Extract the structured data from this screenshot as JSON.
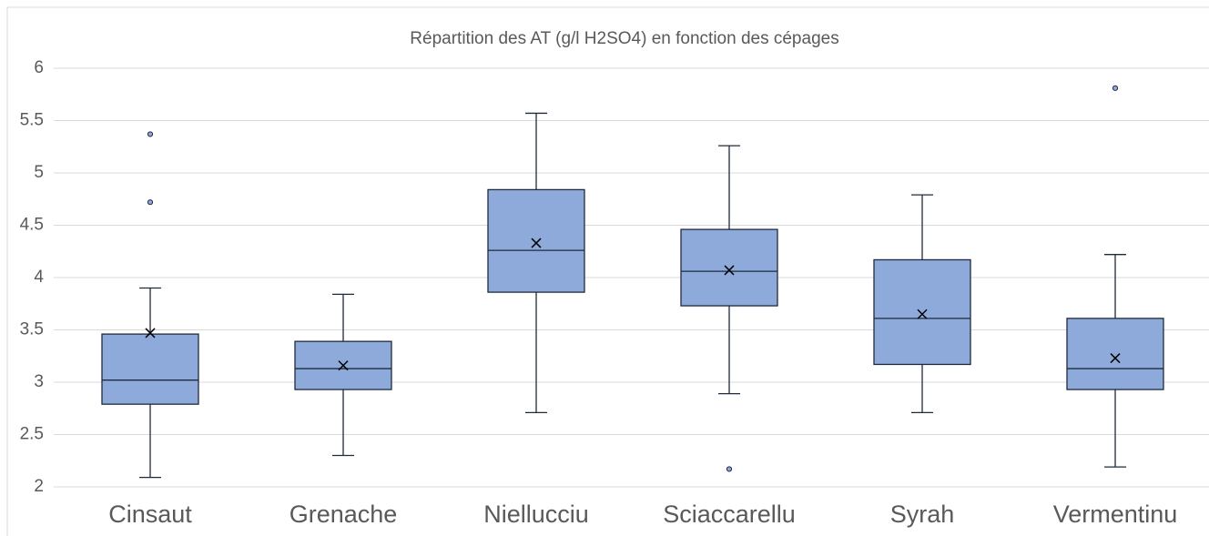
{
  "chart_data": {
    "type": "box",
    "title": "Répartition des AT (g/l H2SO4) en fonction des cépages",
    "categories": [
      "Cinsaut",
      "Grenache",
      "Niellucciu",
      "Sciaccarellu",
      "Syrah",
      "Vermentinu"
    ],
    "color": "#8eaadb",
    "grid": true,
    "ylim": [
      2,
      6
    ],
    "yticks": [
      2,
      2.5,
      3,
      3.5,
      4,
      4.5,
      5,
      5.5,
      6
    ],
    "boxes": [
      {
        "min": 2.09,
        "q1": 2.79,
        "median": 3.02,
        "q3": 3.46,
        "max": 3.9,
        "mean": 3.47,
        "outliers": [
          5.37,
          4.72
        ]
      },
      {
        "min": 2.3,
        "q1": 2.93,
        "median": 3.13,
        "q3": 3.39,
        "max": 3.84,
        "mean": 3.16,
        "outliers": []
      },
      {
        "min": 2.71,
        "q1": 3.86,
        "median": 4.26,
        "q3": 4.84,
        "max": 5.57,
        "mean": 4.33,
        "outliers": []
      },
      {
        "min": 2.89,
        "q1": 3.73,
        "median": 4.06,
        "q3": 4.46,
        "max": 5.26,
        "mean": 4.07,
        "outliers": [
          2.17
        ]
      },
      {
        "min": 2.71,
        "q1": 3.17,
        "median": 3.61,
        "q3": 4.17,
        "max": 4.79,
        "mean": 3.65,
        "outliers": []
      },
      {
        "min": 2.19,
        "q1": 2.93,
        "median": 3.13,
        "q3": 3.61,
        "max": 4.22,
        "mean": 3.23,
        "outliers": [
          5.81
        ]
      }
    ]
  }
}
